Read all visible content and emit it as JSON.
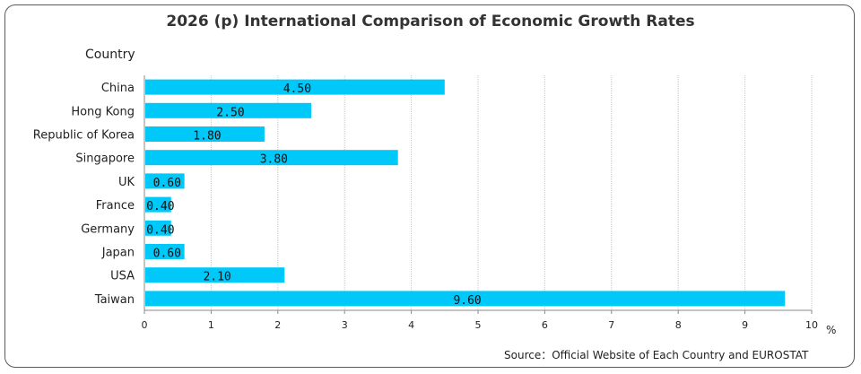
{
  "chart_data": {
    "type": "bar",
    "orientation": "horizontal",
    "title": "2026 (p) International Comparison of Economic Growth Rates",
    "ylabel": "Country",
    "xunit": "%",
    "categories": [
      "China",
      "Hong Kong",
      "Republic of Korea",
      "Singapore",
      "UK",
      "France",
      "Germany",
      "Japan",
      "USA",
      "Taiwan"
    ],
    "values": [
      4.5,
      2.5,
      1.8,
      3.8,
      0.6,
      0.4,
      0.4,
      0.6,
      2.1,
      9.6
    ],
    "value_labels": [
      "4.50",
      "2.50",
      "1.80",
      "3.80",
      "0.60",
      "0.40",
      "0.40",
      "0.60",
      "2.10",
      "9.60"
    ],
    "xlim": [
      0,
      10
    ],
    "xticks": [
      "0",
      "1",
      "2",
      "3",
      "4",
      "5",
      "6",
      "7",
      "8",
      "9",
      "10"
    ],
    "grid": "vertical",
    "bar_color": "#00c8f8",
    "source": "Source：Official Website of Each Country and EUROSTAT"
  }
}
